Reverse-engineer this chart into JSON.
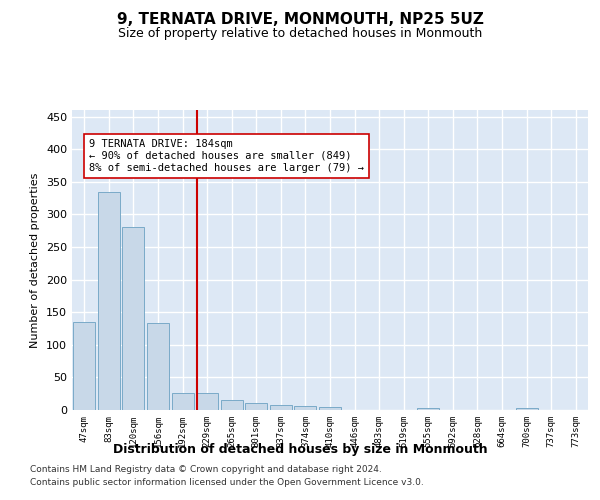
{
  "title": "9, TERNATA DRIVE, MONMOUTH, NP25 5UZ",
  "subtitle": "Size of property relative to detached houses in Monmouth",
  "xlabel": "Distribution of detached houses by size in Monmouth",
  "ylabel": "Number of detached properties",
  "bar_color": "#c8d8e8",
  "bar_edge_color": "#7aaac8",
  "background_color": "#dde8f5",
  "grid_color": "#ffffff",
  "vline_color": "#cc0000",
  "vline_x": 4.58,
  "categories": [
    "47sqm",
    "83sqm",
    "120sqm",
    "156sqm",
    "192sqm",
    "229sqm",
    "265sqm",
    "301sqm",
    "337sqm",
    "374sqm",
    "410sqm",
    "446sqm",
    "483sqm",
    "519sqm",
    "555sqm",
    "592sqm",
    "628sqm",
    "664sqm",
    "700sqm",
    "737sqm",
    "773sqm"
  ],
  "values": [
    135,
    335,
    280,
    133,
    26,
    26,
    15,
    11,
    8,
    6,
    4,
    0,
    0,
    0,
    3,
    0,
    0,
    0,
    3,
    0,
    0
  ],
  "ylim": [
    0,
    460
  ],
  "yticks": [
    0,
    50,
    100,
    150,
    200,
    250,
    300,
    350,
    400,
    450
  ],
  "annotation_text": "9 TERNATA DRIVE: 184sqm\n← 90% of detached houses are smaller (849)\n8% of semi-detached houses are larger (79) →",
  "annotation_box_color": "#ffffff",
  "annotation_text_size": 7.5,
  "footer1": "Contains HM Land Registry data © Crown copyright and database right 2024.",
  "footer2": "Contains public sector information licensed under the Open Government Licence v3.0."
}
